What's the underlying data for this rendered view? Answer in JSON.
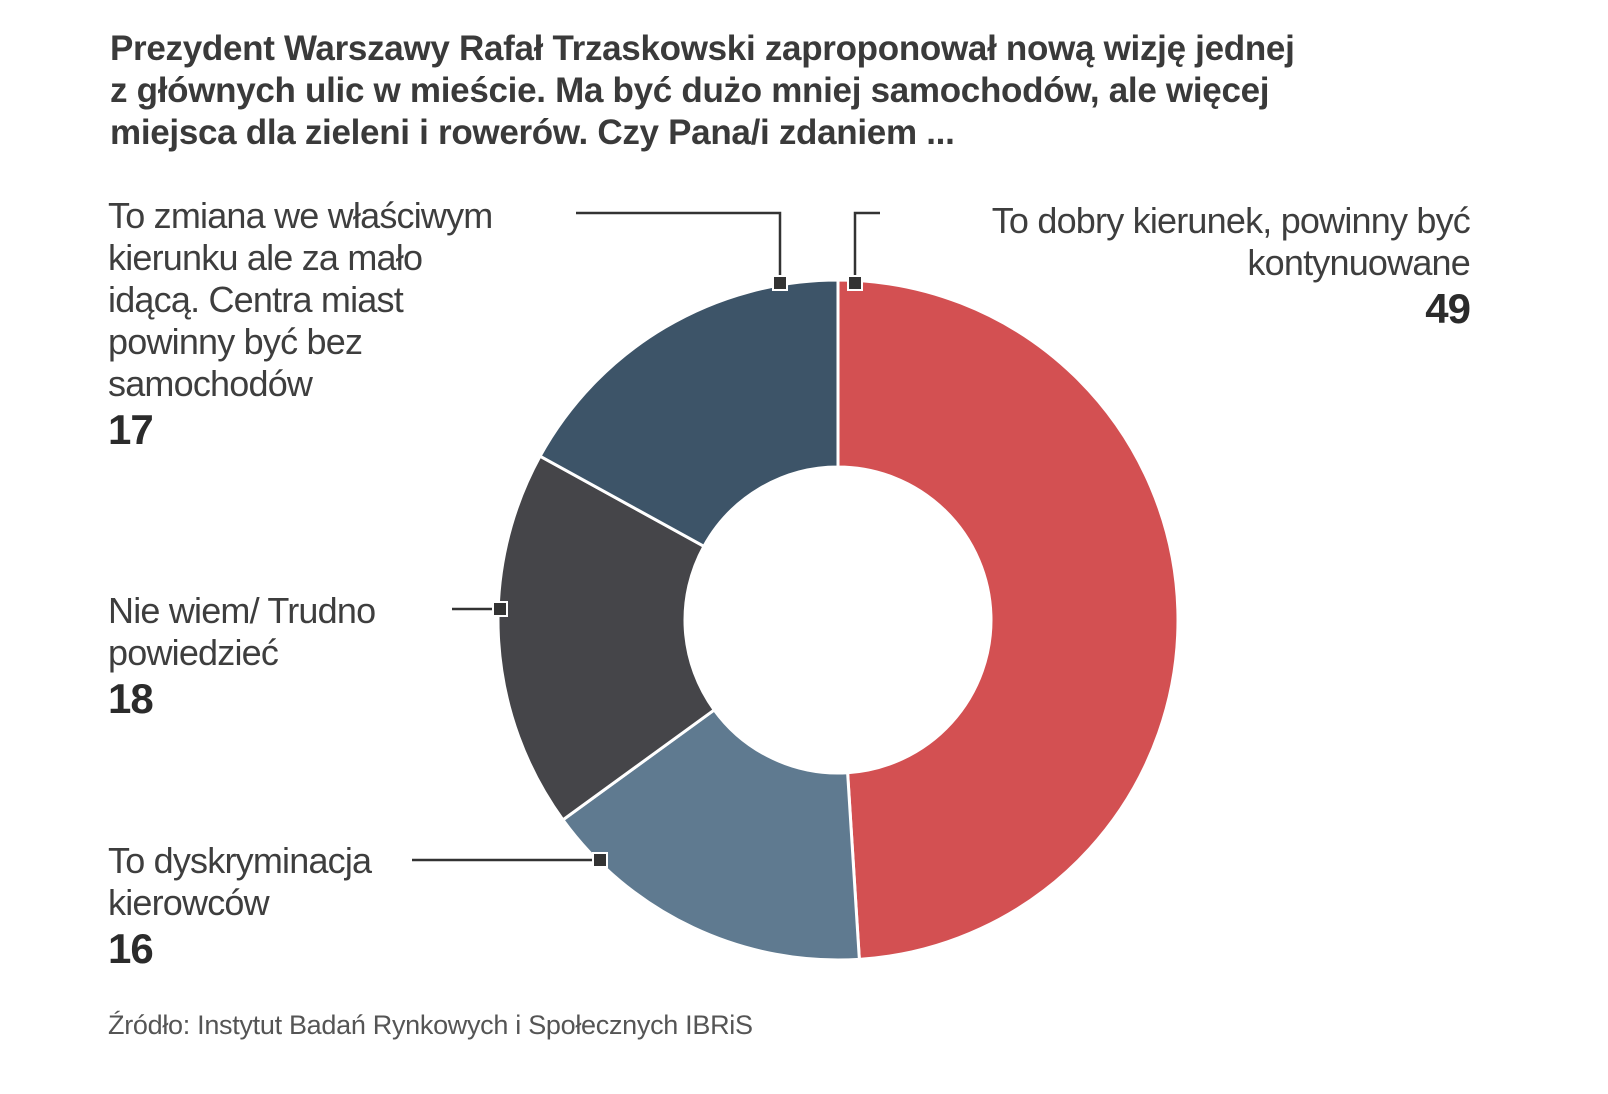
{
  "title_lines": [
    "Prezydent Warszawy Rafał Trzaskowski zaproponował nową wizję jednej",
    "z głównych ulic w mieście. Ma być dużo mniej samochodów, ale więcej",
    "miejsca dla zieleni i rowerów. Czy Pana/i zdaniem ..."
  ],
  "source": "Źródło: Instytut Badań Rynkowych i Społecznych IBRiS",
  "chart_data": {
    "type": "pie",
    "variant": "donut",
    "title": "Prezydent Warszawy Rafał Trzaskowski zaproponował nową wizję jednej z głównych ulic w mieście. Ma być dużo mniej samochodów, ale więcej miejsca dla zieleni i rowerów. Czy Pana/i zdaniem ...",
    "slices": [
      {
        "label_lines": [
          "To dobry kierunek, powinny być",
          "kontynuowane"
        ],
        "value": 49,
        "color": "#d35052"
      },
      {
        "label_lines": [
          "To dyskryminacja",
          "kierowców"
        ],
        "value": 16,
        "color": "#5f7a90"
      },
      {
        "label_lines": [
          "Nie wiem/ Trudno",
          "powiedzieć"
        ],
        "value": 18,
        "color": "#454549"
      },
      {
        "label_lines": [
          "To zmiana we właściwym",
          "kierunku ale za mało",
          "idącą. Centra miast",
          "powinny być bez",
          "samochodów"
        ],
        "value": 17,
        "color": "#3d5468"
      }
    ],
    "start": "top",
    "direction": "clockwise",
    "leader_line_color": "#333333"
  }
}
